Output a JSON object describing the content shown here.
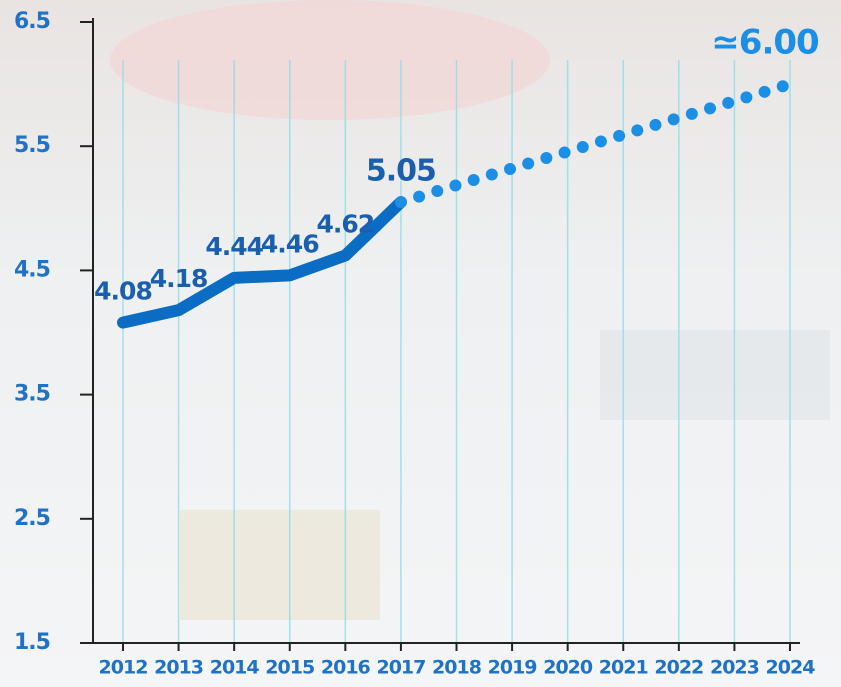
{
  "chart_data": {
    "type": "line",
    "x": [
      2012,
      2013,
      2014,
      2015,
      2016,
      2017,
      2018,
      2019,
      2020,
      2021,
      2022,
      2023,
      2024
    ],
    "xlim": [
      2012,
      2024
    ],
    "xticks": [
      2012,
      2013,
      2014,
      2015,
      2016,
      2017,
      2018,
      2019,
      2020,
      2021,
      2022,
      2023,
      2024
    ],
    "ylim": [
      1.5,
      6.5
    ],
    "yticks": [
      1.5,
      2.5,
      3.5,
      4.5,
      5.5,
      6.5
    ],
    "grid": true,
    "series": [
      {
        "color": "#0b6cc4",
        "style": "solid",
        "x": [
          2012,
          2013,
          2014,
          2015,
          2016,
          2017
        ],
        "values": [
          4.08,
          4.18,
          4.44,
          4.46,
          4.62,
          5.05
        ]
      },
      {
        "color": "#1b8fe6",
        "style": "dotted",
        "x": [
          2017,
          2024
        ],
        "values": [
          5.05,
          6.0
        ],
        "value_labels": [
          null,
          "≃6.00"
        ]
      }
    ]
  }
}
